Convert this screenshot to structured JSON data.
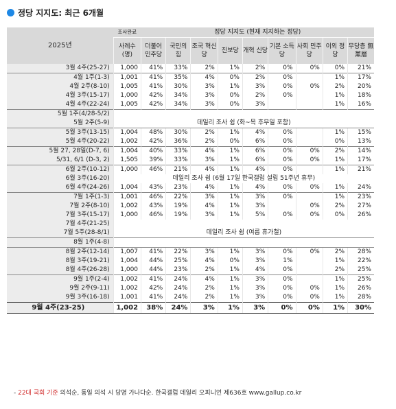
{
  "title": "정당 지지도: 최근 6개월",
  "icon": "blue-dot-icon",
  "accent_color": "#1e88e5",
  "header": {
    "year": "2025년",
    "survey_label": "조사완료",
    "group_label": "정당 지지도 (현재 지지하는 정당)",
    "columns": [
      "사례수 (명)",
      "더불어 민주당",
      "국민의 힘",
      "조국 혁신당",
      "진보당",
      "개혁 신당",
      "기본 소득당",
      "사회 민주당",
      "이외 정당",
      "무당층 無黨層"
    ]
  },
  "rows": [
    {
      "period": "3월 4주(25-27)",
      "values": [
        "1,000",
        "41%",
        "33%",
        "2%",
        "1%",
        "2%",
        "0%",
        "0%",
        "0%",
        "21%"
      ]
    },
    {
      "period": "4월 1주(1-3)",
      "values": [
        "1,001",
        "41%",
        "35%",
        "4%",
        "0%",
        "2%",
        "0%",
        "",
        "1%",
        "17%"
      ],
      "first": true
    },
    {
      "period": "4월 2주(8-10)",
      "values": [
        "1,005",
        "41%",
        "30%",
        "3%",
        "1%",
        "3%",
        "0%",
        "0%",
        "2%",
        "20%"
      ]
    },
    {
      "period": "4월 3주(15-17)",
      "values": [
        "1,000",
        "42%",
        "34%",
        "3%",
        "0%",
        "2%",
        "0%",
        "",
        "1%",
        "18%"
      ]
    },
    {
      "period": "4월 4주(22-24)",
      "values": [
        "1,005",
        "42%",
        "34%",
        "3%",
        "0%",
        "3%",
        "",
        "",
        "1%",
        "16%"
      ]
    },
    {
      "period": "5월 1주(4/28-5/2)",
      "note": "",
      "first": true
    },
    {
      "period": "5월 2주(5-9)",
      "note": "데일리 조사 쉼 (화~목 후무일 포함)"
    },
    {
      "period": "5월 3주(13-15)",
      "values": [
        "1,004",
        "48%",
        "30%",
        "2%",
        "1%",
        "4%",
        "0%",
        "",
        "1%",
        "15%"
      ],
      "first": true
    },
    {
      "period": "5월 4주(20-22)",
      "values": [
        "1,002",
        "42%",
        "36%",
        "2%",
        "0%",
        "6%",
        "0%",
        "",
        "0%",
        "13%"
      ]
    },
    {
      "period": "5월 27, 28일(D-7, 6)",
      "values": [
        "1,004",
        "40%",
        "33%",
        "4%",
        "1%",
        "6%",
        "0%",
        "0%",
        "2%",
        "14%"
      ],
      "first": true
    },
    {
      "period": "5/31, 6/1 (D-3, 2)",
      "values": [
        "1,505",
        "39%",
        "33%",
        "3%",
        "1%",
        "6%",
        "0%",
        "0%",
        "1%",
        "17%"
      ]
    },
    {
      "period": "6월 2주(10-12)",
      "values": [
        "1,000",
        "46%",
        "21%",
        "4%",
        "1%",
        "4%",
        "0%",
        "",
        "1%",
        "21%"
      ],
      "first": true
    },
    {
      "period": "6월 3주(16-20)",
      "note": "데일리 조사 쉼 (6월 17일 한국갤럽 설립 51주년 휴무)"
    },
    {
      "period": "6월 4주(24-26)",
      "values": [
        "1,004",
        "43%",
        "23%",
        "4%",
        "1%",
        "4%",
        "0%",
        "0%",
        "1%",
        "24%"
      ]
    },
    {
      "period": "7월 1주(1-3)",
      "values": [
        "1,001",
        "46%",
        "22%",
        "3%",
        "1%",
        "3%",
        "0%",
        "",
        "1%",
        "23%"
      ],
      "first": true
    },
    {
      "period": "7월 2주(8-10)",
      "values": [
        "1,002",
        "43%",
        "19%",
        "4%",
        "1%",
        "3%",
        "",
        "0%",
        "2%",
        "27%"
      ]
    },
    {
      "period": "7월 3주(15-17)",
      "values": [
        "1,000",
        "46%",
        "19%",
        "3%",
        "1%",
        "5%",
        "0%",
        "0%",
        "0%",
        "26%"
      ]
    },
    {
      "period": "7월 4주(21-25)",
      "note": ""
    },
    {
      "period": "7월 5주(28-8/1)",
      "note": "데일리 조사 쉼 (여름 휴가철)"
    },
    {
      "period": "8월 1주(4-8)",
      "note": "",
      "first": true
    },
    {
      "period": "8월 2주(12-14)",
      "values": [
        "1,007",
        "41%",
        "22%",
        "3%",
        "1%",
        "3%",
        "0%",
        "0%",
        "2%",
        "28%"
      ],
      "first": true
    },
    {
      "period": "8월 3주(19-21)",
      "values": [
        "1,004",
        "44%",
        "25%",
        "4%",
        "0%",
        "3%",
        "1%",
        "",
        "1%",
        "22%"
      ]
    },
    {
      "period": "8월 4주(26-28)",
      "values": [
        "1,000",
        "44%",
        "23%",
        "2%",
        "1%",
        "4%",
        "0%",
        "",
        "2%",
        "25%"
      ]
    },
    {
      "period": "9월 1주(2-4)",
      "values": [
        "1,002",
        "41%",
        "24%",
        "4%",
        "1%",
        "3%",
        "0%",
        "",
        "1%",
        "25%"
      ],
      "first": true
    },
    {
      "period": "9월 2주(9-11)",
      "values": [
        "1,002",
        "42%",
        "24%",
        "2%",
        "1%",
        "3%",
        "0%",
        "0%",
        "1%",
        "26%"
      ]
    },
    {
      "period": "9월 3주(16-18)",
      "values": [
        "1,001",
        "41%",
        "24%",
        "2%",
        "1%",
        "3%",
        "0%",
        "0%",
        "1%",
        "28%"
      ]
    }
  ],
  "final_row": {
    "period": "9월 4주(23-25)",
    "values": [
      "1,002",
      "38%",
      "24%",
      "3%",
      "1%",
      "3%",
      "0%",
      "0%",
      "1%",
      "30%"
    ]
  },
  "footer": {
    "red_text": "22대 국회 기준",
    "text": " 의석순, 동일 의석 시 당명 가나다순. 한국갤럽 데일리 오피니언 제636호 www.gallup.co.kr",
    "prefix": "- "
  }
}
